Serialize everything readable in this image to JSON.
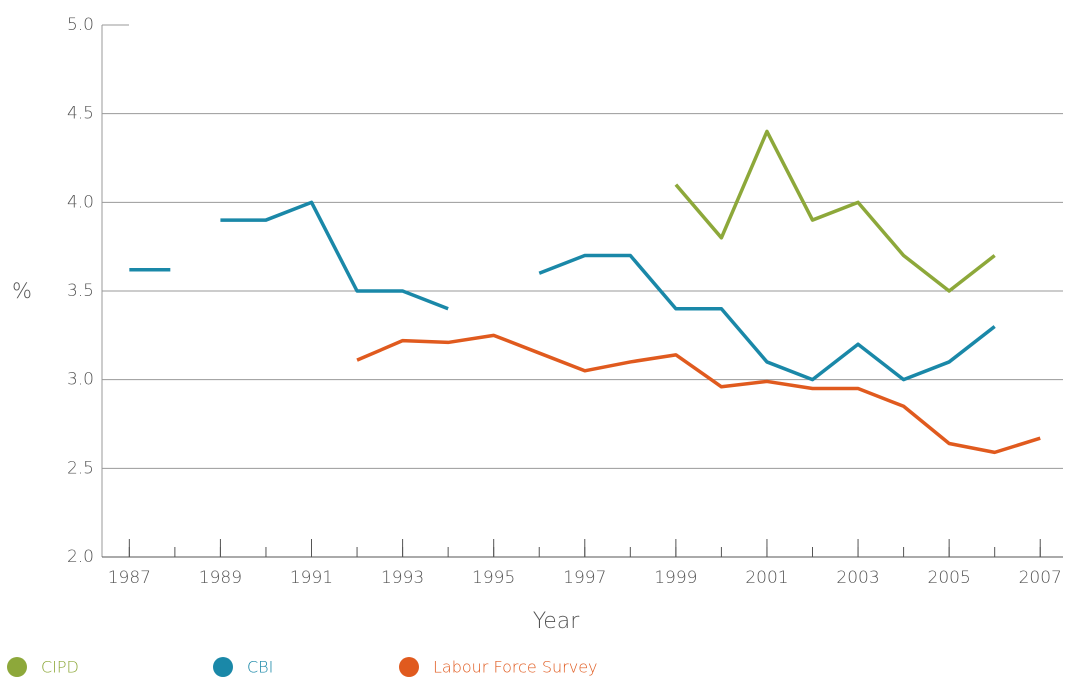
{
  "chart_data": {
    "type": "line",
    "x": [
      1987,
      1988,
      1989,
      1990,
      1991,
      1992,
      1993,
      1994,
      1995,
      1996,
      1997,
      1998,
      1999,
      2000,
      2001,
      2002,
      2003,
      2004,
      2005,
      2006,
      2007
    ],
    "series": [
      {
        "name": "CIPD",
        "color": "#8da83a",
        "values": [
          null,
          null,
          null,
          null,
          null,
          null,
          null,
          null,
          null,
          null,
          null,
          null,
          4.1,
          3.8,
          4.4,
          3.9,
          4.0,
          3.7,
          3.5,
          3.7,
          null
        ]
      },
      {
        "name": "CBI",
        "color": "#1a88a8",
        "values": [
          3.62,
          null,
          3.9,
          3.9,
          4.0,
          3.5,
          3.5,
          3.4,
          null,
          3.6,
          3.7,
          3.7,
          3.4,
          3.4,
          3.1,
          3.0,
          3.2,
          3.0,
          3.1,
          3.3,
          null
        ]
      },
      {
        "name": "Labour Force Survey",
        "color": "#e05a1e",
        "values": [
          null,
          null,
          null,
          null,
          null,
          3.11,
          3.22,
          3.21,
          3.25,
          3.15,
          3.05,
          3.1,
          3.14,
          2.96,
          2.99,
          2.95,
          2.95,
          2.85,
          2.64,
          2.59,
          2.67
        ]
      }
    ],
    "xlabel": "Year",
    "ylabel": "%",
    "xlim": [
      1986.4,
      2007.5
    ],
    "ylim": [
      2.0,
      5.0
    ],
    "xticks": [
      1987,
      1989,
      1991,
      1993,
      1995,
      1997,
      1999,
      2001,
      2003,
      2005,
      2007
    ],
    "yticks": [
      {
        "value": 2.0,
        "label": "2.0"
      },
      {
        "value": 2.5,
        "label": "2.5"
      },
      {
        "value": 3.0,
        "label": "3.0"
      },
      {
        "value": 3.5,
        "label": "3.5"
      },
      {
        "value": 4.0,
        "label": "4.0"
      },
      {
        "value": 4.5,
        "label": "4.5"
      },
      {
        "value": 5.0,
        "label": "5.0"
      }
    ],
    "grid": true,
    "legend": "bottom"
  }
}
